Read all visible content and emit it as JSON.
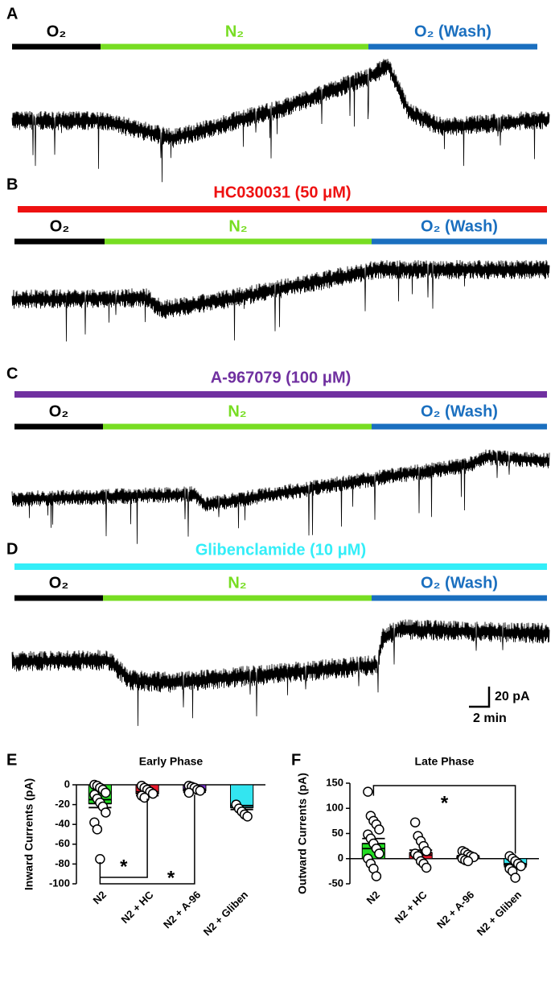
{
  "chart_data": [
    {
      "type": "trace",
      "panel_label": "A",
      "gas": [
        {
          "label": "O₂",
          "color": "#000000"
        },
        {
          "label": "N₂",
          "color": "#77dd22"
        },
        {
          "label": "O₂ (Wash)",
          "color": "#1a6fbf"
        }
      ]
    },
    {
      "type": "trace",
      "panel_label": "B",
      "drug": {
        "label": "HC030031 (50 μM)",
        "color": "#ee1111"
      },
      "gas": [
        {
          "label": "O₂",
          "color": "#000000"
        },
        {
          "label": "N₂",
          "color": "#77dd22"
        },
        {
          "label": "O₂ (Wash)",
          "color": "#1a6fbf"
        }
      ]
    },
    {
      "type": "trace",
      "panel_label": "C",
      "drug": {
        "label": "A-967079 (100 μM)",
        "color": "#7030a0"
      },
      "gas": [
        {
          "label": "O₂",
          "color": "#000000"
        },
        {
          "label": "N₂",
          "color": "#77dd22"
        },
        {
          "label": "O₂ (Wash)",
          "color": "#1a6fbf"
        }
      ]
    },
    {
      "type": "trace",
      "panel_label": "D",
      "drug": {
        "label": "Glibenclamide (10 μM)",
        "color": "#33eef8"
      },
      "gas": [
        {
          "label": "O₂",
          "color": "#000000"
        },
        {
          "label": "N₂",
          "color": "#77dd22"
        },
        {
          "label": "O₂ (Wash)",
          "color": "#1a6fbf"
        }
      ],
      "scale_y": "20 pA",
      "scale_x": "2 min"
    },
    {
      "type": "bar",
      "panel_label": "E",
      "title": "Early Phase",
      "y_label": "Inward Currents (pA)",
      "categories": [
        "N2",
        "N2 + HC",
        "N2 + A-96",
        "N2 + Gliben"
      ],
      "colors": [
        "#22dd22",
        "#e8192c",
        "#7a2fd0",
        "#33e5f0"
      ],
      "values": [
        -19,
        -9,
        -6,
        -23
      ],
      "errors": [
        4,
        2,
        1.5,
        2
      ],
      "points": [
        [
          0,
          -1,
          -3,
          -5,
          -8,
          -10,
          -14,
          -18,
          -22,
          -28,
          -38,
          -45,
          -75
        ],
        [
          -1,
          -3,
          -5,
          -7,
          -9,
          -11,
          -13
        ],
        [
          -1,
          -2,
          -3,
          -5,
          -6,
          -8
        ],
        [
          -20,
          -24,
          -27,
          -30,
          -32
        ]
      ],
      "ylim": [
        -100,
        0
      ],
      "yticks": [
        -100,
        -80,
        -60,
        -40,
        -20,
        0
      ],
      "annotations": [
        "*",
        "*"
      ]
    },
    {
      "type": "bar",
      "panel_label": "F",
      "title": "Late Phase",
      "y_label": "Outward Currents (pA)",
      "categories": [
        "N2",
        "N2 + HC",
        "N2 + A-96",
        "N2 + Gliben"
      ],
      "colors": [
        "#22dd22",
        "#e8192c",
        "#7a2fd0",
        "#33e5f0"
      ],
      "values": [
        30,
        12,
        4,
        -13
      ],
      "errors": [
        10,
        5,
        2,
        3
      ],
      "points": [
        [
          133,
          85,
          75,
          68,
          58,
          48,
          40,
          30,
          20,
          10,
          0,
          -10,
          -20,
          -35
        ],
        [
          72,
          45,
          35,
          25,
          15,
          10,
          5,
          -5,
          -10,
          -18
        ],
        [
          15,
          12,
          8,
          5,
          3,
          0,
          -3,
          -5
        ],
        [
          5,
          0,
          -5,
          -10,
          -15,
          -20,
          -25,
          -38
        ]
      ],
      "ylim": [
        -50,
        150
      ],
      "yticks": [
        -50,
        0,
        50,
        100,
        150
      ],
      "annotations": [
        "*"
      ]
    }
  ]
}
